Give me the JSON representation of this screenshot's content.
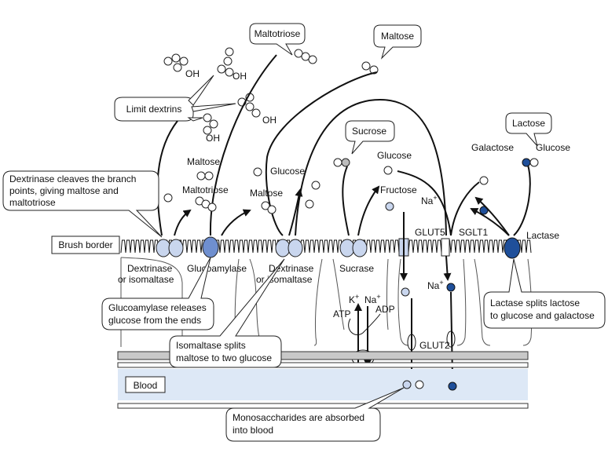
{
  "labels": {
    "maltotriose_top": "Maltotriose",
    "maltose_top": "Maltose",
    "limit_dextrins": "Limit dextrins",
    "oh": "OH",
    "maltose_1": "Maltose",
    "maltotriose_1": "Maltotriose",
    "glucose_2": "Glucose",
    "maltose_2": "Maltose",
    "sucrose": "Sucrose",
    "glucose_3": "Glucose",
    "fructose": "Fructose",
    "na_plus": "Na",
    "plus": "+",
    "lactose": "Lactose",
    "galactose": "Galactose",
    "glucose_4": "Glucose",
    "brush_border": "Brush border",
    "glut5": "GLUT5",
    "sglt1": "SGLT1",
    "lactase": "Lactase",
    "dextrinase_1_line1": "Dextrinase",
    "dextrinase_1_line2": "or isomaltase",
    "glucoamylase": "Glucoamylase",
    "dextrinase_2_line1": "Dextrinase",
    "dextrinase_2_line2": "or isomaltase",
    "sucrase": "Sucrase",
    "k": "K",
    "atp": "ATP",
    "adp": "ADP",
    "glut2": "GLUT2",
    "blood": "Blood"
  },
  "callouts": {
    "dextrinase_cleaves": [
      "Dextrinase cleaves the branch",
      "points, giving maltose and",
      "maltotriose"
    ],
    "glucoamylase_releases": [
      "Glucoamylase releases",
      "glucose from the ends"
    ],
    "isomaltase_splits": [
      "Isomaltase splits",
      "maltose to two glucose"
    ],
    "lactase_splits": [
      "Lactase splits lactose",
      "to glucose and galactose"
    ],
    "monosaccharides": [
      "Monosaccharides are absorbed",
      "into blood"
    ]
  },
  "colors": {
    "enzyme_light": "#c9d6ee",
    "enzyme_medium": "#6f8fcf",
    "enzyme_dark": "#1f4f9a",
    "sugar_light": "#c9d6ee",
    "sugar_grey": "#bdbdbd",
    "sugar_dark": "#1f4f9a",
    "blood_band": "#dde8f6",
    "basement_grey": "#c8c8c8"
  }
}
